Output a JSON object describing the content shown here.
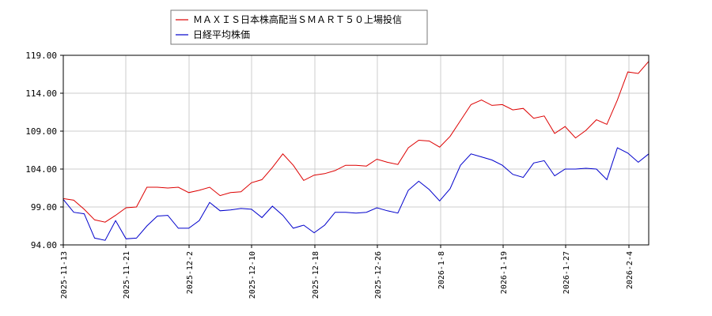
{
  "chart_data": {
    "type": "line",
    "grid": true,
    "legend_position": "top-left",
    "ylim": [
      94,
      119
    ],
    "y_ticks": [
      "94.00",
      "99.00",
      "104.00",
      "109.00",
      "114.00",
      "119.00"
    ],
    "x_ticks": [
      "2025-11-13",
      "2025-11-21",
      "2025-12-2",
      "2025-12-10",
      "2025-12-18",
      "2025-12-26",
      "2026-1-8",
      "2026-1-19",
      "2026-1-27",
      "2026-2-4"
    ],
    "series": [
      {
        "name": "ＭＡＸＩＳ日本株高配当ＳＭＡＲＴ５０上場投信",
        "color": "#dd0000",
        "values": [
          100.1,
          99.9,
          98.7,
          97.3,
          97.0,
          97.9,
          98.9,
          99.0,
          101.6,
          101.6,
          101.5,
          101.6,
          100.9,
          101.2,
          101.6,
          100.5,
          100.9,
          101.0,
          102.2,
          102.6,
          104.2,
          106.0,
          104.5,
          102.5,
          103.2,
          103.4,
          103.8,
          104.5,
          104.5,
          104.4,
          105.3,
          104.9,
          104.6,
          106.8,
          107.8,
          107.7,
          106.9,
          108.3,
          110.4,
          112.5,
          113.1,
          112.4,
          112.5,
          111.8,
          112.0,
          110.7,
          111.0,
          108.7,
          109.6,
          108.1,
          109.1,
          110.5,
          109.9,
          113.1,
          116.8,
          116.6,
          118.2
        ]
      },
      {
        "name": "日経平均株価",
        "color": "#0000cc",
        "values": [
          100.0,
          98.3,
          98.1,
          94.9,
          94.6,
          97.2,
          94.8,
          94.9,
          96.5,
          97.8,
          97.9,
          96.2,
          96.2,
          97.2,
          99.6,
          98.5,
          98.6,
          98.8,
          98.7,
          97.6,
          99.1,
          97.9,
          96.2,
          96.6,
          95.6,
          96.6,
          98.3,
          98.3,
          98.2,
          98.3,
          98.9,
          98.5,
          98.2,
          101.2,
          102.4,
          101.3,
          99.8,
          101.4,
          104.5,
          106.0,
          105.6,
          105.2,
          104.5,
          103.3,
          102.9,
          104.8,
          105.1,
          103.1,
          104.0,
          104.0,
          104.1,
          104.0,
          102.6,
          106.8,
          106.1,
          104.9,
          106.0
        ]
      }
    ]
  }
}
